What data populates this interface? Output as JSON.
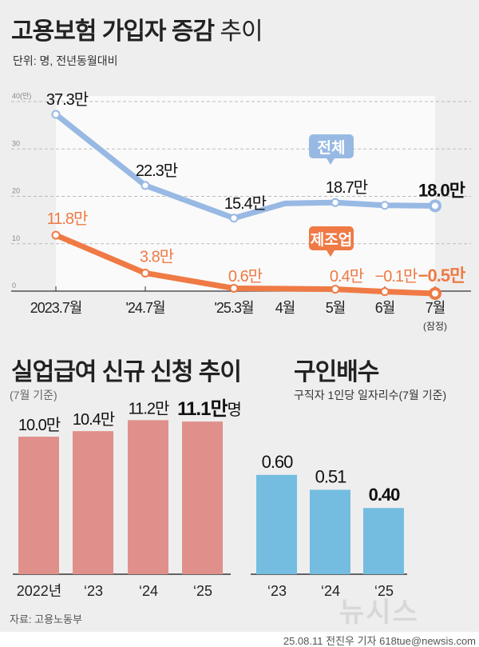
{
  "header": {
    "title_bold": "고용보험 가입자 증감",
    "title_light": "추이",
    "unit": "단위: 명, 전년동월대비"
  },
  "chart_data": [
    {
      "type": "line",
      "title": "고용보험 가입자 증감 추이",
      "ylabel": "(만)",
      "ylim": [
        0,
        40
      ],
      "yticks": [
        "0",
        "10",
        "20",
        "30",
        "40(만)"
      ],
      "categories": [
        "2023.7월",
        "'24.7월",
        "'25.3월",
        "4월",
        "5월",
        "6월",
        "7월"
      ],
      "note_last": "(잠정)",
      "series": [
        {
          "name": "전체",
          "color": "#98b9e3",
          "values": [
            37.3,
            22.3,
            15.4,
            18.5,
            18.7,
            18.1,
            18.0
          ],
          "labels": [
            "37.3만",
            "22.3만",
            "15.4만",
            "",
            "18.7만",
            "",
            "18.0만"
          ]
        },
        {
          "name": "제조업",
          "color": "#ef7a45",
          "values": [
            11.8,
            3.8,
            0.6,
            0.5,
            0.4,
            -0.1,
            -0.5
          ],
          "labels": [
            "11.8만",
            "3.8만",
            "0.6만",
            "",
            "0.4만",
            "−0.1만",
            "−0.5만"
          ]
        }
      ]
    },
    {
      "type": "bar",
      "title": "실업급여 신규 신청 추이",
      "subtitle": "(7월 기준)",
      "categories": [
        "2022년",
        "‘23",
        "‘24",
        "‘25"
      ],
      "values": [
        10.0,
        10.4,
        11.2,
        11.1
      ],
      "labels": [
        "10.0만",
        "10.4만",
        "11.2만",
        "11.1만"
      ],
      "unit_suffix": "명",
      "color": "#e0908a"
    },
    {
      "type": "bar",
      "title": "구인배수",
      "subtitle": "구직자 1인당 일자리수(7월 기준)",
      "categories": [
        "‘23",
        "‘24",
        "‘25"
      ],
      "values": [
        0.6,
        0.51,
        0.4
      ],
      "labels": [
        "0.60",
        "0.51",
        "0.40"
      ],
      "color": "#74bde0"
    }
  ],
  "footer": {
    "source": "자료: 고용노동부",
    "credit": "25.08.11 전진우 기자 618tue@newsis.com",
    "logo": "뉴시스"
  }
}
